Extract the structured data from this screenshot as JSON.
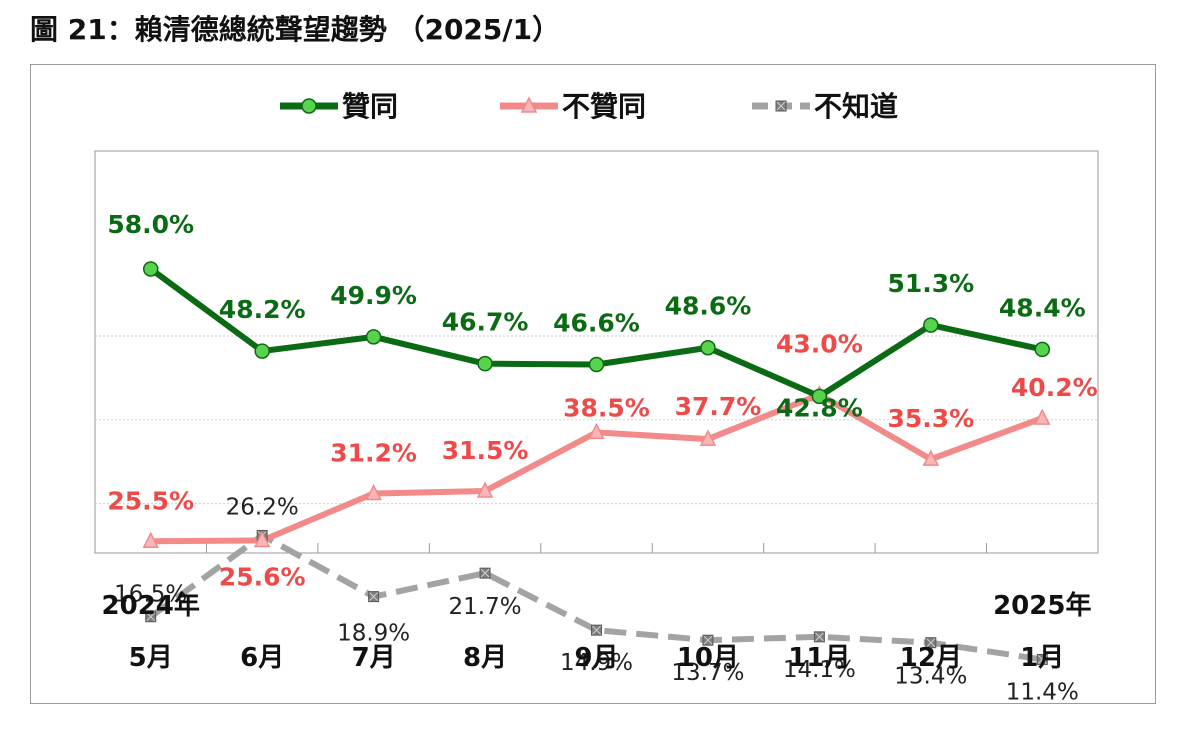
{
  "title": "圖 21：賴清德總統聲望趨勢 （2025/1）",
  "chart_data": {
    "type": "line",
    "categories": [
      "5月",
      "6月",
      "7月",
      "8月",
      "9月",
      "10月",
      "11月",
      "12月",
      "1月"
    ],
    "year_labels": {
      "first": "2024年",
      "last": "2025年"
    },
    "ylim": [
      0,
      100
    ],
    "grid": true,
    "legend_position": "top",
    "series": [
      {
        "name": "贊同",
        "color": "#0b6b14",
        "marker_color": "#59d34d",
        "values": [
          58.0,
          48.2,
          49.9,
          46.7,
          46.6,
          48.6,
          42.8,
          51.3,
          48.4
        ],
        "labels": [
          "58.0%",
          "48.2%",
          "49.9%",
          "46.7%",
          "46.6%",
          "48.6%",
          "42.8%",
          "51.3%",
          "48.4%"
        ]
      },
      {
        "name": "不贊同",
        "color": "#f28a8a",
        "marker_color": "#f9b6b6",
        "values": [
          25.5,
          25.6,
          31.2,
          31.5,
          38.5,
          37.7,
          43.0,
          35.3,
          40.2
        ],
        "labels": [
          "25.5%",
          "25.6%",
          "31.2%",
          "31.5%",
          "38.5%",
          "37.7%",
          "43.0%",
          "35.3%",
          "40.2%"
        ]
      },
      {
        "name": "不知道",
        "color": "#a3a3a3",
        "marker_color": "#7d7d7d",
        "values": [
          16.5,
          26.2,
          18.9,
          21.7,
          14.9,
          13.7,
          14.1,
          13.4,
          11.4
        ],
        "labels": [
          "16.5%",
          "26.2%",
          "18.9%",
          "21.7%",
          "14.9%",
          "13.7%",
          "14.1%",
          "13.4%",
          "11.4%"
        ]
      }
    ]
  }
}
